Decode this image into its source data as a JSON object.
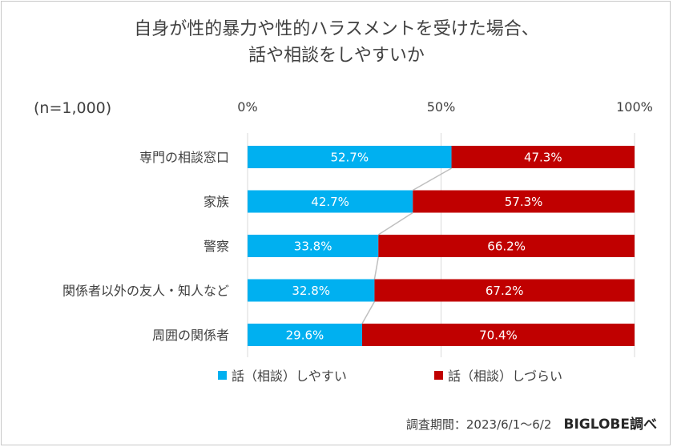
{
  "title_line1": "自身が性的暴力や性的ハラスメントを受けた場合、",
  "title_line2": "話や相談をしやすいか",
  "sample_note": "(n=1,000)",
  "footer": {
    "period": "調査期間：2023/6/1～6/2",
    "brand": "BIGLOBE調べ"
  },
  "colors": {
    "easy": "#00B0F0",
    "hard": "#C00000",
    "connector": "#bfbfbf",
    "grid": "#d9d9d9"
  },
  "chart_data": {
    "type": "bar",
    "orientation": "horizontal-stacked-100",
    "xlim": [
      0,
      100
    ],
    "ticks": [
      "0%",
      "50%",
      "100%"
    ],
    "tick_values": [
      0,
      50,
      100
    ],
    "categories": [
      "専門の相談窓口",
      "家族",
      "警察",
      "関係者以外の友人・知人など",
      "周囲の関係者"
    ],
    "series": [
      {
        "name": "話（相談）しやすい",
        "values": [
          52.7,
          42.7,
          33.8,
          32.8,
          29.6
        ],
        "labels": [
          "52.7%",
          "42.7%",
          "33.8%",
          "32.8%",
          "29.6%"
        ]
      },
      {
        "name": "話（相談）しづらい",
        "values": [
          47.3,
          57.3,
          66.2,
          67.2,
          70.4
        ],
        "labels": [
          "47.3%",
          "57.3%",
          "66.2%",
          "67.2%",
          "70.4%"
        ]
      }
    ],
    "legend_position": "bottom",
    "grid": true
  }
}
